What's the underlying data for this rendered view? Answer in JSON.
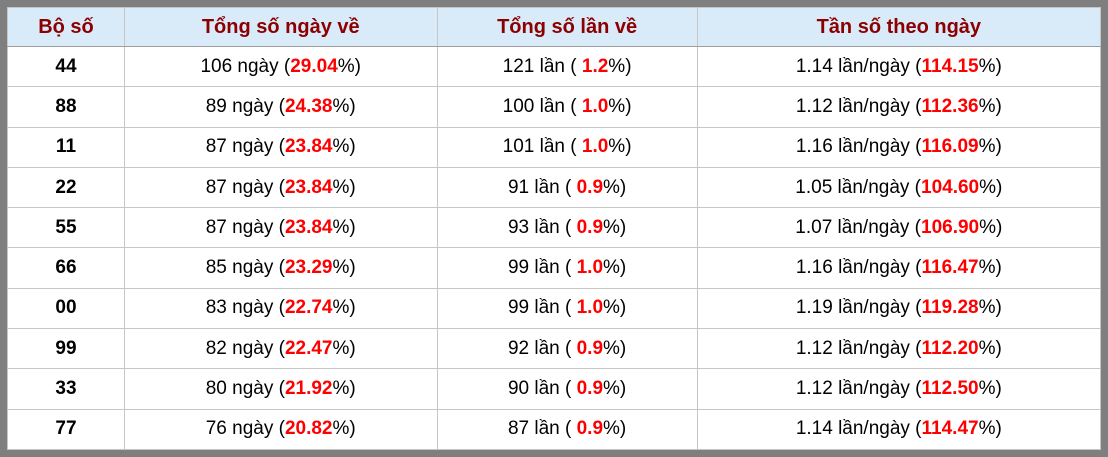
{
  "table": {
    "headers": [
      "Bộ số",
      "Tổng số ngày về",
      "Tổng số lần về",
      "Tần số theo ngày"
    ],
    "format": {
      "pct_suffix": "%)"
    },
    "rows": [
      {
        "pair": "44",
        "days_prefix": "106 ngày (",
        "days_pct": "29.04",
        "times_prefix": "121 lần ( ",
        "times_pct": "1.2",
        "freq_prefix": "1.14 lần/ngày (",
        "freq_pct": "114.15"
      },
      {
        "pair": "88",
        "days_prefix": "89 ngày (",
        "days_pct": "24.38",
        "times_prefix": "100 lần ( ",
        "times_pct": "1.0",
        "freq_prefix": "1.12 lần/ngày (",
        "freq_pct": "112.36"
      },
      {
        "pair": "11",
        "days_prefix": "87 ngày (",
        "days_pct": "23.84",
        "times_prefix": "101 lần ( ",
        "times_pct": "1.0",
        "freq_prefix": "1.16 lần/ngày (",
        "freq_pct": "116.09"
      },
      {
        "pair": "22",
        "days_prefix": "87 ngày (",
        "days_pct": "23.84",
        "times_prefix": "91 lần ( ",
        "times_pct": "0.9",
        "freq_prefix": "1.05 lần/ngày (",
        "freq_pct": "104.60"
      },
      {
        "pair": "55",
        "days_prefix": "87 ngày (",
        "days_pct": "23.84",
        "times_prefix": "93 lần ( ",
        "times_pct": "0.9",
        "freq_prefix": "1.07 lần/ngày (",
        "freq_pct": "106.90"
      },
      {
        "pair": "66",
        "days_prefix": "85 ngày (",
        "days_pct": "23.29",
        "times_prefix": "99 lần ( ",
        "times_pct": "1.0",
        "freq_prefix": "1.16 lần/ngày (",
        "freq_pct": "116.47"
      },
      {
        "pair": "00",
        "days_prefix": "83 ngày (",
        "days_pct": "22.74",
        "times_prefix": "99 lần ( ",
        "times_pct": "1.0",
        "freq_prefix": "1.19 lần/ngày (",
        "freq_pct": "119.28"
      },
      {
        "pair": "99",
        "days_prefix": "82 ngày (",
        "days_pct": "22.47",
        "times_prefix": "92 lần ( ",
        "times_pct": "0.9",
        "freq_prefix": "1.12 lần/ngày (",
        "freq_pct": "112.20"
      },
      {
        "pair": "33",
        "days_prefix": "80 ngày (",
        "days_pct": "21.92",
        "times_prefix": "90 lần ( ",
        "times_pct": "0.9",
        "freq_prefix": "1.12 lần/ngày (",
        "freq_pct": "112.50"
      },
      {
        "pair": "77",
        "days_prefix": "76 ngày (",
        "days_pct": "20.82",
        "times_prefix": "87 lần ( ",
        "times_pct": "0.9",
        "freq_prefix": "1.14 lần/ngày (",
        "freq_pct": "114.47"
      }
    ]
  },
  "colors": {
    "frame_border": "#7f7f7f",
    "header_bg": "#d9eaf8",
    "header_text": "#8b0000",
    "highlight": "#ff0000",
    "grid_line": "#c6c6c6",
    "header_line": "#9e9e9e",
    "text": "#000000"
  }
}
